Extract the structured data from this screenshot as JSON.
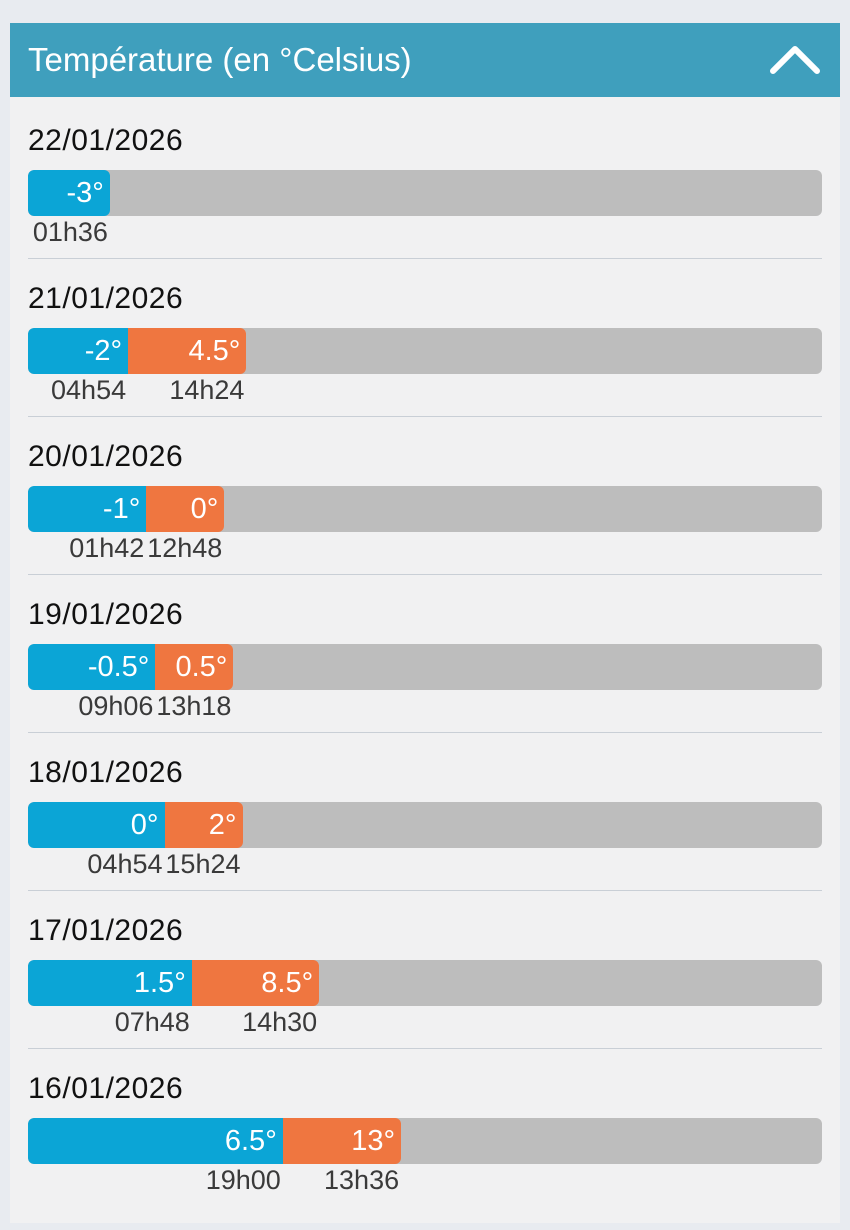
{
  "header": {
    "title": "Température (en °Celsius)",
    "collapse_icon": "chevron-up-icon"
  },
  "colors": {
    "header_bg": "#3f9fbd",
    "min_bar": "#0ba5d6",
    "max_bar": "#ef7640",
    "track": "#bdbdbd"
  },
  "days": [
    {
      "date": "22/01/2026",
      "min": {
        "label": "-3°",
        "time": "01h36",
        "value": -3
      },
      "max": null
    },
    {
      "date": "21/01/2026",
      "min": {
        "label": "-2°",
        "time": "04h54",
        "value": -2
      },
      "max": {
        "label": "4.5°",
        "time": "14h24",
        "value": 4.5
      }
    },
    {
      "date": "20/01/2026",
      "min": {
        "label": "-1°",
        "time": "01h42",
        "value": -1
      },
      "max": {
        "label": "0°",
        "time": "12h48",
        "value": 0
      }
    },
    {
      "date": "19/01/2026",
      "min": {
        "label": "-0.5°",
        "time": "09h06",
        "value": -0.5
      },
      "max": {
        "label": "0.5°",
        "time": "13h18",
        "value": 0.5
      }
    },
    {
      "date": "18/01/2026",
      "min": {
        "label": "0°",
        "time": "04h54",
        "value": 0
      },
      "max": {
        "label": "2°",
        "time": "15h24",
        "value": 2
      }
    },
    {
      "date": "17/01/2026",
      "min": {
        "label": "1.5°",
        "time": "07h48",
        "value": 1.5
      },
      "max": {
        "label": "8.5°",
        "time": "14h30",
        "value": 8.5
      }
    },
    {
      "date": "16/01/2026",
      "min": {
        "label": "6.5°",
        "time": "19h00",
        "value": 6.5
      },
      "max": {
        "label": "13°",
        "time": "13h36",
        "value": 13
      }
    }
  ]
}
